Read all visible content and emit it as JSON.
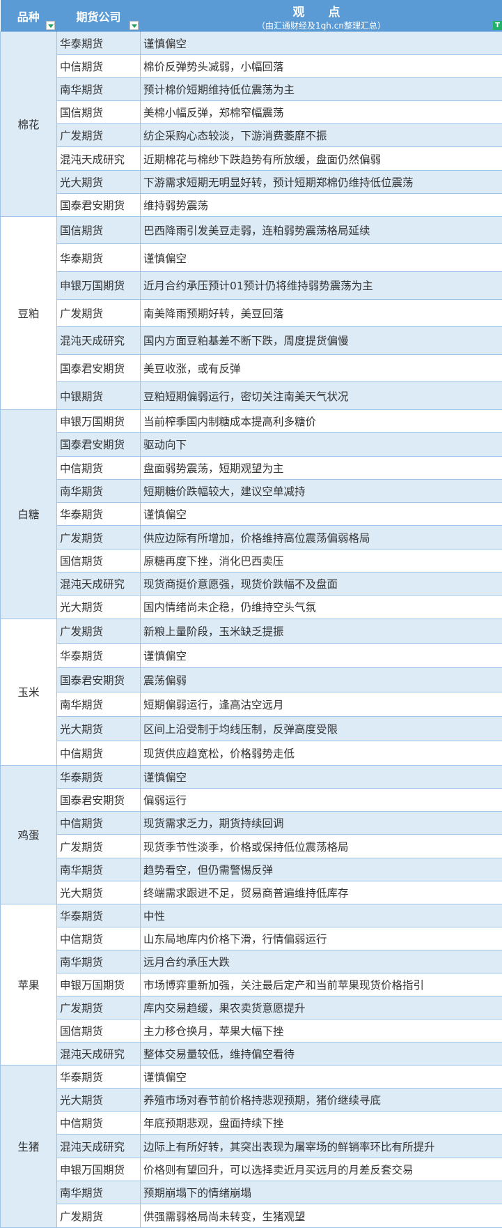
{
  "header": {
    "col_category": "品种",
    "col_company": "期货公司",
    "col_view_title": "观 点",
    "col_view_subtitle": "（由汇通财经及1qh.cn整理汇总）"
  },
  "colors": {
    "header_bg": "#5b9bd5",
    "row_alt": "#ddebf7",
    "border": "#9dc3e6",
    "filter_active": "#20b26b"
  },
  "groups": [
    {
      "name": "棉花",
      "rows": [
        [
          "华泰期货",
          "谨慎偏空"
        ],
        [
          "中信期货",
          "棉价反弹势头减弱，小幅回落"
        ],
        [
          "南华期货",
          "预计棉价短期维持低位震荡为主"
        ],
        [
          "国信期货",
          "美棉小幅反弹，郑棉窄幅震荡"
        ],
        [
          "广发期货",
          "纺企采购心态较淡，下游消费萎靡不振"
        ],
        [
          "混沌天成研究",
          "近期棉花与棉纱下跌趋势有所放缓，盘面仍然偏弱"
        ],
        [
          "光大期货",
          "下游需求短期无明显好转，预计短期郑棉仍维持低位震荡"
        ],
        [
          "国泰君安期货",
          "维持弱势震荡"
        ]
      ]
    },
    {
      "name": "豆粕",
      "rows": [
        [
          "国信期货",
          "巴西降雨引发美豆走弱，连粕弱势震荡格局延续"
        ],
        [
          "华泰期货",
          "谨慎偏空"
        ],
        [
          "申银万国期货",
          "近月合约承压预计01预计仍将维持弱势震荡为主"
        ],
        [
          "广发期货",
          "南美降雨预期好转，美豆回落"
        ],
        [
          "混沌天成研究",
          "国内方面豆粕基差不断下跌，周度提货偏慢"
        ],
        [
          "国泰君安期货",
          "美豆收涨，或有反弹"
        ],
        [
          "中银期货",
          "豆粕短期偏弱运行，密切关注南美天气状况"
        ]
      ]
    },
    {
      "name": "白糖",
      "rows": [
        [
          "申银万国期货",
          "当前榨季国内制糖成本提高利多糖价"
        ],
        [
          "国泰君安期货",
          "驱动向下"
        ],
        [
          "中信期货",
          "盘面弱势震荡，短期观望为主"
        ],
        [
          "南华期货",
          "短期糖价跌幅较大，建议空单减持"
        ],
        [
          "华泰期货",
          "谨慎偏空"
        ],
        [
          "广发期货",
          "供应边际有所增加，价格维持高位震荡偏弱格局"
        ],
        [
          "国信期货",
          "原糖再度下挫，消化巴西卖压"
        ],
        [
          "混沌天成研究",
          "现货商挺价意愿强，现货价跌幅不及盘面"
        ],
        [
          "光大期货",
          "国内情绪尚未企稳，仍维持空头气氛"
        ]
      ]
    },
    {
      "name": "玉米",
      "rows": [
        [
          "广发期货",
          "新粮上量阶段，玉米缺乏提振"
        ],
        [
          "华泰期货",
          "谨慎偏空"
        ],
        [
          "国泰君安期货",
          "震荡偏弱"
        ],
        [
          "南华期货",
          "短期偏弱运行，逢高沽空远月"
        ],
        [
          "光大期货",
          "区间上沿受制于均线压制，反弹高度受限"
        ],
        [
          "中信期货",
          "现货供应趋宽松，价格弱势走低"
        ]
      ]
    },
    {
      "name": "鸡蛋",
      "rows": [
        [
          "华泰期货",
          "谨慎偏空"
        ],
        [
          "国泰君安期货",
          "偏弱运行"
        ],
        [
          "中信期货",
          "现货需求乏力，期货持续回调"
        ],
        [
          "广发期货",
          "现货季节性淡季，价格或保持低位震荡格局"
        ],
        [
          "南华期货",
          "趋势看空，但仍需警惕反弹"
        ],
        [
          "光大期货",
          "终端需求跟进不足，贸易商普遍维持低库存"
        ]
      ]
    },
    {
      "name": "苹果",
      "rows": [
        [
          "华泰期货",
          "中性"
        ],
        [
          "中信期货",
          "山东局地库内价格下滑，行情偏弱运行"
        ],
        [
          "南华期货",
          "远月合约承压大跌"
        ],
        [
          "申银万国期货",
          "市场博弈重新加强，关注最后定产和当前苹果现货价格指引"
        ],
        [
          "广发期货",
          "库内交易趋缓，果农卖货意愿提升"
        ],
        [
          "国信期货",
          "主力移仓换月，苹果大幅下挫"
        ],
        [
          "混沌天成研究",
          "整体交易量较低，维持偏空看待"
        ]
      ]
    },
    {
      "name": "生猪",
      "rows": [
        [
          "华泰期货",
          "谨慎偏空"
        ],
        [
          "光大期货",
          "养殖市场对春节前价格持悲观预期，猪价继续寻底"
        ],
        [
          "中信期货",
          "年底预期悲观，盘面持续下挫"
        ],
        [
          "混沌天成研究",
          "边际上有所好转，其突出表现为屠宰场的鲜销率环比有所提升"
        ],
        [
          "申银万国期货",
          "价格则有望回升，可以选择卖近月买远月的月差反套交易"
        ],
        [
          "南华期货",
          "预期崩塌下的情绪崩塌"
        ],
        [
          "广发期货",
          "供强需弱格局尚未转变，生猪观望"
        ]
      ]
    }
  ]
}
